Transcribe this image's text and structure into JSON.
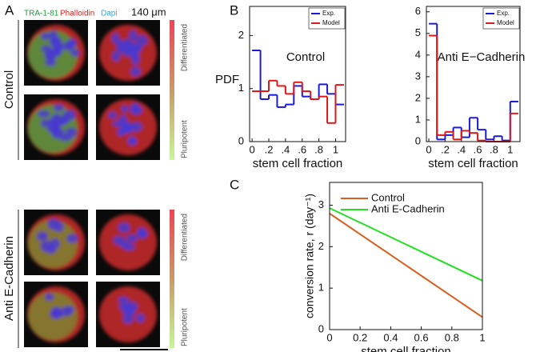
{
  "panel_labels": [
    "A",
    "B",
    "C"
  ],
  "panel_a": {
    "stains": [
      "TRA-1-81",
      "Phalloidin",
      "Dapi"
    ],
    "scale": "140 μm",
    "groups": [
      "Control",
      "Anti E-Cadherin"
    ],
    "colorbar": [
      "Differentiated",
      "Pluripotent"
    ]
  },
  "chart_data": [
    {
      "type": "histogram",
      "annotation": "Control",
      "xlabel": "stem cell fraction",
      "ylabel": "PDF",
      "bins": [
        0,
        0.1,
        0.2,
        0.3,
        0.4,
        0.5,
        0.6,
        0.7,
        0.8,
        0.9,
        1.0,
        1.1
      ],
      "xlim": [
        -0.03,
        1.12
      ],
      "xticks": [
        0,
        {
          "value": 0.2,
          "label": ".2"
        },
        {
          "value": 0.4,
          "label": ".4"
        },
        {
          "value": 0.6,
          "label": ".6"
        },
        {
          "value": 0.8,
          "label": ".8"
        },
        1
      ],
      "ylim": [
        0,
        2.55
      ],
      "yticks": [
        0,
        1,
        2
      ],
      "legend": "upper right",
      "series": [
        {
          "name": "Exp.",
          "color": "#1a1adc",
          "values": [
            1.72,
            0.8,
            0.88,
            0.65,
            0.7,
            1.05,
            0.85,
            0.8,
            1.08,
            0.9,
            0.7
          ]
        },
        {
          "name": "Model",
          "color": "#e01818",
          "values": [
            0.95,
            0.95,
            1.15,
            1.05,
            0.9,
            1.12,
            0.95,
            0.8,
            0.85,
            0.35,
            1.07
          ]
        }
      ]
    },
    {
      "type": "histogram",
      "annotation": "Anti E−Cadherin",
      "xlabel": "stem cell fraction",
      "bins": [
        0,
        0.1,
        0.2,
        0.3,
        0.4,
        0.5,
        0.6,
        0.7,
        0.8,
        0.9,
        1.0,
        1.1
      ],
      "xlim": [
        -0.03,
        1.12
      ],
      "xticks": [
        0,
        {
          "value": 0.2,
          "label": ".2"
        },
        {
          "value": 0.4,
          "label": ".4"
        },
        {
          "value": 0.6,
          "label": ".6"
        },
        {
          "value": 0.8,
          "label": ".8"
        },
        1
      ],
      "ylim": [
        0,
        6.25
      ],
      "yticks": [
        0,
        1,
        2,
        3,
        4,
        5,
        6
      ],
      "legend": "upper right",
      "series": [
        {
          "name": "Exp.",
          "color": "#1a1adc",
          "values": [
            5.45,
            0.1,
            0.3,
            0.65,
            0.2,
            1.1,
            0.55,
            0.1,
            0.25,
            0.05,
            1.85
          ]
        },
        {
          "name": "Model",
          "color": "#e01818",
          "values": [
            4.9,
            0.3,
            0.45,
            0.1,
            0.5,
            0.4,
            0.05,
            0,
            0,
            0,
            1.3
          ]
        }
      ]
    },
    {
      "type": "line",
      "xlabel": "stem cell fraction",
      "ylabel": "conversion rate, r (day⁻¹)",
      "x": [
        0,
        1
      ],
      "xlim": [
        0,
        1
      ],
      "xticks": [
        0,
        0.2,
        0.4,
        0.6,
        0.8,
        1
      ],
      "ylim": [
        0,
        3.55
      ],
      "yticks": [
        0,
        1,
        2,
        3
      ],
      "legend": "upper center",
      "series": [
        {
          "name": "Control",
          "color": "#d9601e",
          "values": [
            2.8,
            0.3
          ]
        },
        {
          "name": "Anti E-Cadherin",
          "color": "#22e022",
          "values": [
            2.93,
            1.18
          ]
        }
      ]
    }
  ]
}
